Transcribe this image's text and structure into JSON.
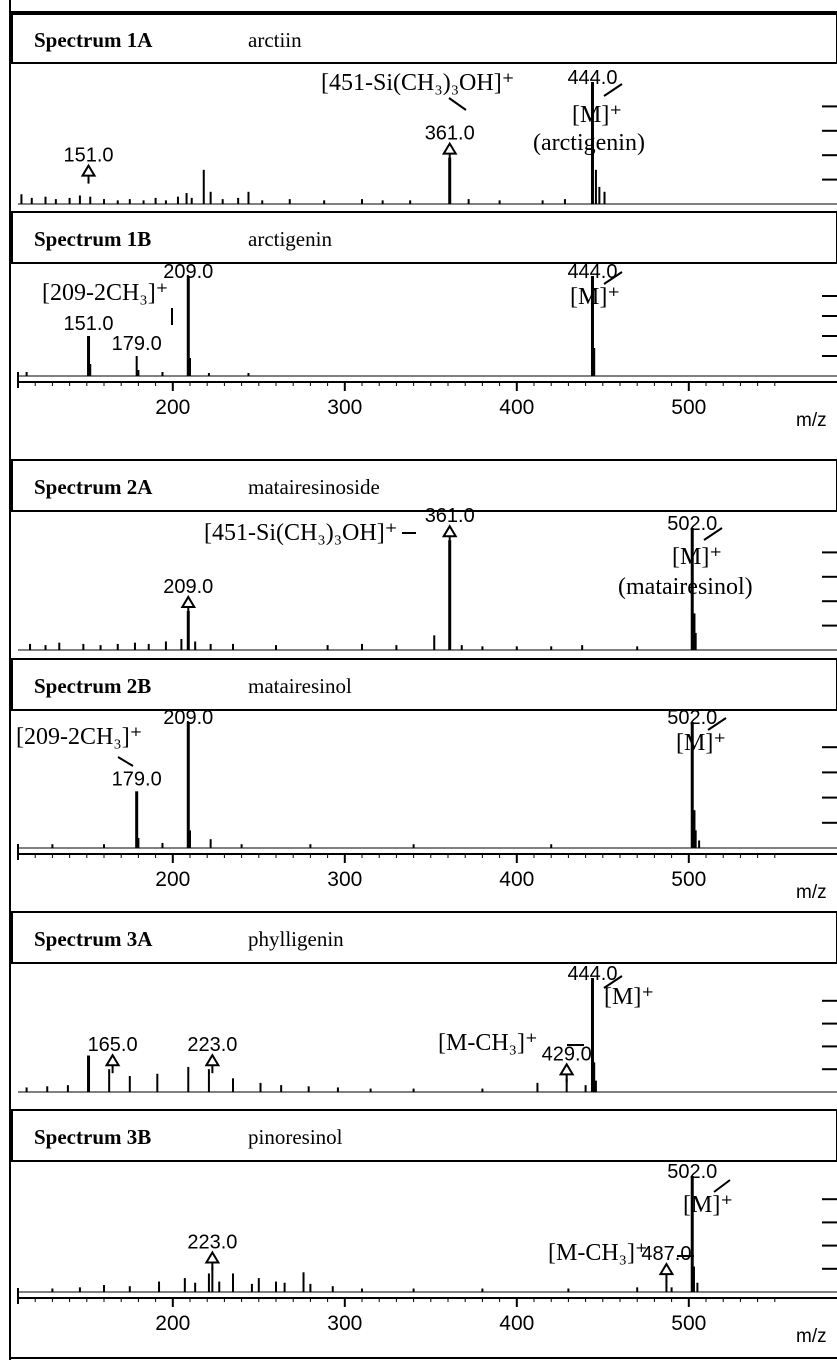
{
  "figure": {
    "axis_label": "m/z",
    "tick_labels": [
      "200",
      "300",
      "400",
      "500"
    ]
  },
  "chart_data": [
    {
      "type": "bar",
      "group": 1,
      "id_label": "Spectrum 1A",
      "compound": "arctiin",
      "xlabel": "m/z",
      "xlim": [
        110,
        555
      ],
      "ylim": [
        0,
        100
      ],
      "peaks": [
        [
          112,
          8
        ],
        [
          118,
          5
        ],
        [
          126,
          6
        ],
        [
          132,
          4
        ],
        [
          140,
          5
        ],
        [
          146,
          7
        ],
        [
          152,
          6
        ],
        [
          160,
          4
        ],
        [
          168,
          3
        ],
        [
          175,
          4
        ],
        [
          183,
          3
        ],
        [
          190,
          5
        ],
        [
          196,
          3
        ],
        [
          203,
          6
        ],
        [
          208,
          9
        ],
        [
          211,
          5
        ],
        [
          218,
          28
        ],
        [
          222,
          10
        ],
        [
          229,
          4
        ],
        [
          238,
          5
        ],
        [
          244,
          10
        ],
        [
          252,
          3
        ],
        [
          268,
          4
        ],
        [
          288,
          3
        ],
        [
          310,
          4
        ],
        [
          322,
          3
        ],
        [
          338,
          3
        ],
        [
          361,
          38
        ],
        [
          372,
          4
        ],
        [
          390,
          3
        ],
        [
          415,
          3
        ],
        [
          428,
          4
        ],
        [
          444,
          100
        ],
        [
          446,
          28
        ],
        [
          448,
          14
        ],
        [
          451,
          10
        ]
      ],
      "labels": [
        {
          "mz": 151,
          "text": "151.0",
          "arrow": true
        },
        {
          "mz": 361,
          "text": "361.0",
          "arrow": true
        },
        {
          "mz": 444,
          "text": "444.0"
        }
      ],
      "annotations": [
        "[451-Si(CH₃)₃OH]⁺",
        "[M]⁺",
        "(arctigenin)"
      ]
    },
    {
      "type": "bar",
      "group": 1,
      "id_label": "Spectrum 1B",
      "compound": "arctigenin",
      "xlabel": "m/z",
      "xlim": [
        110,
        555
      ],
      "ylim": [
        0,
        100
      ],
      "peaks": [
        [
          115,
          4
        ],
        [
          151,
          40
        ],
        [
          152,
          12
        ],
        [
          179,
          20
        ],
        [
          180,
          6
        ],
        [
          194,
          4
        ],
        [
          209,
          100
        ],
        [
          210,
          18
        ],
        [
          221,
          3
        ],
        [
          244,
          3
        ],
        [
          444,
          100
        ],
        [
          445,
          28
        ]
      ],
      "labels": [
        {
          "mz": 151,
          "text": "151.0"
        },
        {
          "mz": 179,
          "text": "179.0"
        },
        {
          "mz": 209,
          "text": "209.0"
        },
        {
          "mz": 444,
          "text": "444.0"
        }
      ],
      "annotations": [
        "[209-2CH₃]⁺",
        "[M]⁺"
      ]
    },
    {
      "type": "bar",
      "group": 2,
      "id_label": "Spectrum 2A",
      "compound": "matairesinoside",
      "xlabel": "m/z",
      "xlim": [
        110,
        555
      ],
      "ylim": [
        0,
        100
      ],
      "peaks": [
        [
          117,
          5
        ],
        [
          126,
          4
        ],
        [
          134,
          6
        ],
        [
          148,
          5
        ],
        [
          158,
          4
        ],
        [
          168,
          5
        ],
        [
          178,
          6
        ],
        [
          186,
          5
        ],
        [
          196,
          7
        ],
        [
          205,
          9
        ],
        [
          209,
          32
        ],
        [
          213,
          7
        ],
        [
          222,
          5
        ],
        [
          235,
          5
        ],
        [
          260,
          4
        ],
        [
          290,
          4
        ],
        [
          310,
          5
        ],
        [
          330,
          4
        ],
        [
          352,
          12
        ],
        [
          361,
          90
        ],
        [
          368,
          4
        ],
        [
          380,
          3
        ],
        [
          400,
          3
        ],
        [
          420,
          3
        ],
        [
          438,
          4
        ],
        [
          470,
          3
        ],
        [
          502,
          100
        ],
        [
          503,
          30
        ],
        [
          504,
          14
        ]
      ],
      "labels": [
        {
          "mz": 209,
          "text": "209.0",
          "arrow": true
        },
        {
          "mz": 361,
          "text": "361.0",
          "arrow": true
        },
        {
          "mz": 502,
          "text": "502.0"
        }
      ],
      "annotations": [
        "[451-Si(CH₃)₃OH]⁺",
        "[M]⁺",
        "(matairesinol)"
      ]
    },
    {
      "type": "bar",
      "group": 2,
      "id_label": "Spectrum 2B",
      "compound": "matairesinol",
      "xlabel": "m/z",
      "xlim": [
        110,
        555
      ],
      "ylim": [
        0,
        100
      ],
      "peaks": [
        [
          130,
          3
        ],
        [
          160,
          3
        ],
        [
          179,
          45
        ],
        [
          180,
          8
        ],
        [
          194,
          4
        ],
        [
          209,
          100
        ],
        [
          210,
          14
        ],
        [
          222,
          7
        ],
        [
          240,
          3
        ],
        [
          280,
          3
        ],
        [
          340,
          3
        ],
        [
          420,
          3
        ],
        [
          502,
          100
        ],
        [
          503,
          30
        ],
        [
          504,
          14
        ],
        [
          506,
          6
        ]
      ],
      "labels": [
        {
          "mz": 179,
          "text": "179.0"
        },
        {
          "mz": 209,
          "text": "209.0"
        },
        {
          "mz": 502,
          "text": "502.0"
        }
      ],
      "annotations": [
        "[209-2CH₃]⁺",
        "[M]⁺"
      ]
    },
    {
      "type": "bar",
      "group": 3,
      "id_label": "Spectrum 3A",
      "compound": "phylligenin",
      "xlabel": "m/z",
      "xlim": [
        110,
        555
      ],
      "ylim": [
        0,
        100
      ],
      "peaks": [
        [
          115,
          4
        ],
        [
          127,
          5
        ],
        [
          139,
          6
        ],
        [
          151,
          32
        ],
        [
          163,
          20
        ],
        [
          175,
          14
        ],
        [
          191,
          16
        ],
        [
          209,
          22
        ],
        [
          221,
          20
        ],
        [
          235,
          12
        ],
        [
          251,
          8
        ],
        [
          263,
          6
        ],
        [
          279,
          5
        ],
        [
          296,
          4
        ],
        [
          315,
          3
        ],
        [
          340,
          3
        ],
        [
          380,
          3
        ],
        [
          412,
          8
        ],
        [
          429,
          12
        ],
        [
          440,
          6
        ],
        [
          444,
          100
        ],
        [
          445,
          26
        ],
        [
          446,
          10
        ]
      ],
      "labels": [
        {
          "mz": 165,
          "text": "165.0",
          "arrow": true
        },
        {
          "mz": 223,
          "text": "223.0",
          "arrow": true
        },
        {
          "mz": 429,
          "text": "429.0",
          "arrow": true
        },
        {
          "mz": 444,
          "text": "444.0"
        }
      ],
      "annotations": [
        "[M]⁺",
        "[M-CH₃]⁺"
      ]
    },
    {
      "type": "bar",
      "group": 3,
      "id_label": "Spectrum 3B",
      "compound": "pinoresinol",
      "xlabel": "m/z",
      "xlim": [
        110,
        555
      ],
      "ylim": [
        0,
        100
      ],
      "peaks": [
        [
          130,
          3
        ],
        [
          146,
          4
        ],
        [
          160,
          6
        ],
        [
          175,
          5
        ],
        [
          192,
          9
        ],
        [
          207,
          12
        ],
        [
          213,
          8
        ],
        [
          221,
          16
        ],
        [
          223,
          22
        ],
        [
          227,
          9
        ],
        [
          235,
          16
        ],
        [
          246,
          7
        ],
        [
          250,
          12
        ],
        [
          260,
          9
        ],
        [
          265,
          8
        ],
        [
          276,
          17
        ],
        [
          280,
          7
        ],
        [
          293,
          5
        ],
        [
          310,
          3
        ],
        [
          340,
          3
        ],
        [
          380,
          3
        ],
        [
          430,
          3
        ],
        [
          470,
          4
        ],
        [
          487,
          10
        ],
        [
          490,
          4
        ],
        [
          502,
          100
        ],
        [
          503,
          22
        ],
        [
          505,
          8
        ]
      ],
      "labels": [
        {
          "mz": 223,
          "text": "223.0",
          "arrow": true
        },
        {
          "mz": 487,
          "text": "487.0",
          "arrow": true
        },
        {
          "mz": 502,
          "text": "502.0"
        }
      ],
      "annotations": [
        "[M]⁺",
        "[M-CH₃]⁺"
      ]
    }
  ]
}
